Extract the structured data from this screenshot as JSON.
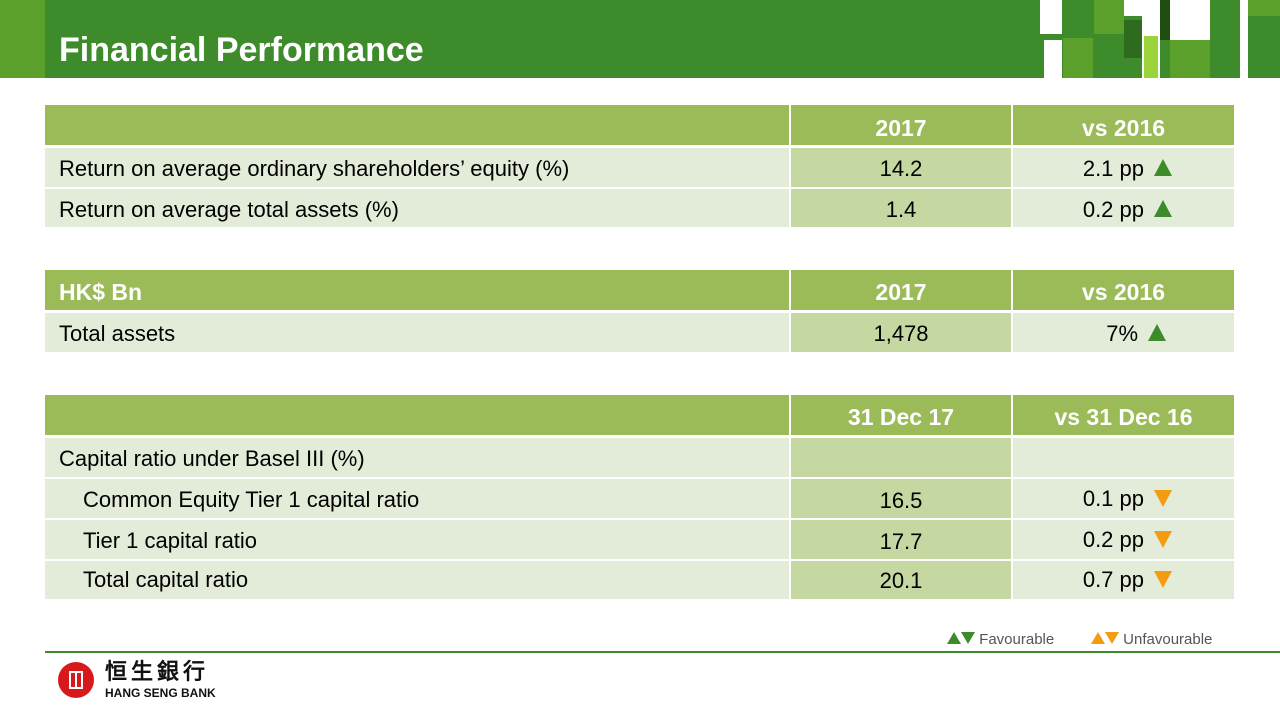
{
  "header": {
    "title": "Financial Performance"
  },
  "colors": {
    "header_green": "#3d8b2a",
    "table_header": "#9bbb59",
    "row_light": "#e3ecd8",
    "row_mid": "#c5d8a1",
    "favourable": "#3d8b2a",
    "unfavourable": "#f39c12"
  },
  "table1": {
    "headers": [
      "",
      "2017",
      "vs 2016"
    ],
    "rows": [
      {
        "label": "Return on average ordinary shareholders’ equity (%)",
        "value": "14.2",
        "change": "2.1 pp",
        "direction": "up"
      },
      {
        "label": "Return on average total assets (%)",
        "value": "1.4",
        "change": "0.2 pp",
        "direction": "up"
      }
    ]
  },
  "table2": {
    "headers": [
      "HK$ Bn",
      "2017",
      "vs 2016"
    ],
    "rows": [
      {
        "label": "Total assets",
        "value": "1,478",
        "change": "7%",
        "direction": "up"
      }
    ]
  },
  "table3": {
    "headers": [
      "",
      "31 Dec 17",
      "vs 31 Dec 16"
    ],
    "section": "Capital ratio under Basel III (%)",
    "rows": [
      {
        "label": "Common Equity Tier 1 capital ratio",
        "value": "16.5",
        "change": "0.1 pp",
        "direction": "down"
      },
      {
        "label": "Tier 1 capital ratio",
        "value": "17.7",
        "change": "0.2 pp",
        "direction": "down"
      },
      {
        "label": "Total capital ratio",
        "value": "20.1",
        "change": "0.7 pp",
        "direction": "down"
      }
    ]
  },
  "legend": {
    "favourable": "Favourable",
    "unfavourable": "Unfavourable"
  },
  "footer": {
    "logo_cn": "恒生銀行",
    "logo_en": "HANG SENG BANK"
  }
}
